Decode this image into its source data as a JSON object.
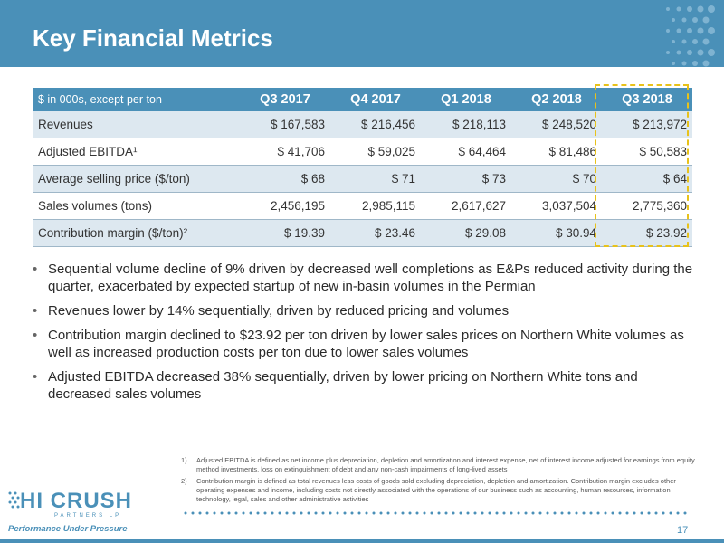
{
  "header": {
    "title": "Key Financial Metrics"
  },
  "table": {
    "header_label": "$ in 000s, except per ton",
    "columns": [
      "Q3 2017",
      "Q4 2017",
      "Q1 2018",
      "Q2 2018",
      "Q3 2018"
    ],
    "rows": [
      {
        "label": "Revenues",
        "values": [
          "$ 167,583",
          "$ 216,456",
          "$ 218,113",
          "$ 248,520",
          "$ 213,972"
        ]
      },
      {
        "label": "Adjusted EBITDA¹",
        "values": [
          "$ 41,706",
          "$ 59,025",
          "$ 64,464",
          "$ 81,486",
          "$ 50,583"
        ]
      },
      {
        "label": "Average selling price ($/ton)",
        "values": [
          "$ 68",
          "$ 71",
          "$ 73",
          "$ 70",
          "$ 64"
        ]
      },
      {
        "label": "Sales volumes (tons)",
        "values": [
          "2,456,195",
          "2,985,115",
          "2,617,627",
          "3,037,504",
          "2,775,360"
        ]
      },
      {
        "label": "Contribution margin ($/ton)²",
        "values": [
          "$ 19.39",
          "$ 23.46",
          "$ 29.08",
          "$ 30.94",
          "$ 23.92"
        ]
      }
    ]
  },
  "bullets": [
    "Sequential volume decline of 9% driven by decreased well completions as E&Ps reduced activity during the quarter, exacerbated by expected startup of new in-basin volumes in the Permian",
    "Revenues lower by 14% sequentially, driven by reduced pricing and volumes",
    "Contribution margin declined to $23.92 per ton driven by lower sales prices on Northern White volumes as well as increased production costs per ton due to lower sales volumes",
    "Adjusted EBITDA decreased 38% sequentially, driven by lower pricing on Northern White tons and decreased sales volumes"
  ],
  "footnotes": [
    {
      "num": "1)",
      "text": "Adjusted EBITDA is defined as net income plus depreciation, depletion and amortization and interest expense, net of interest income adjusted for earnings from equity method investments, loss on extinguishment of debt and any non-cash impairments of long-lived assets"
    },
    {
      "num": "2)",
      "text": "Contribution margin is defined as total revenues less costs of goods sold excluding depreciation, depletion and amortization. Contribution margin excludes other operating expenses and income, including costs not directly associated with the operations of our business such as accounting, human resources, information technology, legal, sales and other administrative activities"
    }
  ],
  "logo": {
    "name": "HI CRUSH",
    "sub": "PARTNERS LP",
    "tagline": "Performance Under Pressure"
  },
  "page_number": "17",
  "colors": {
    "brand_blue": "#4a90b8",
    "highlight": "#e8c21a",
    "row_alt": "#dde8f0"
  }
}
